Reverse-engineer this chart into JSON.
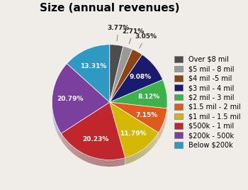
{
  "title": "Size (annual revenues)",
  "slices": [
    {
      "label": "Over $8 mil",
      "pct": 3.77,
      "color": "#4d4d4d"
    },
    {
      "label": "$5 mil - 8 mil",
      "pct": 2.71,
      "color": "#999999"
    },
    {
      "label": "$4 mil -5 mil",
      "pct": 3.05,
      "color": "#8B4513"
    },
    {
      "label": "$3 mil - 4 mil",
      "pct": 9.08,
      "color": "#1a1a6e"
    },
    {
      "label": "$2 mil - 3 mil",
      "pct": 8.12,
      "color": "#3cb34a"
    },
    {
      "label": "$1.5 mil - 2 mil",
      "pct": 7.15,
      "color": "#e05a1e"
    },
    {
      "label": "$1 mil - 1.5 mil",
      "pct": 11.79,
      "color": "#d4b800"
    },
    {
      "label": "$500k - 1 mil",
      "pct": 20.23,
      "color": "#c0272d"
    },
    {
      "label": "$200k - 500k",
      "pct": 20.79,
      "color": "#7b3f9e"
    },
    {
      "label": "Below $200k",
      "pct": 13.31,
      "color": "#2e9ac4"
    }
  ],
  "title_fontsize": 11,
  "label_fontsize": 7,
  "legend_fontsize": 7
}
